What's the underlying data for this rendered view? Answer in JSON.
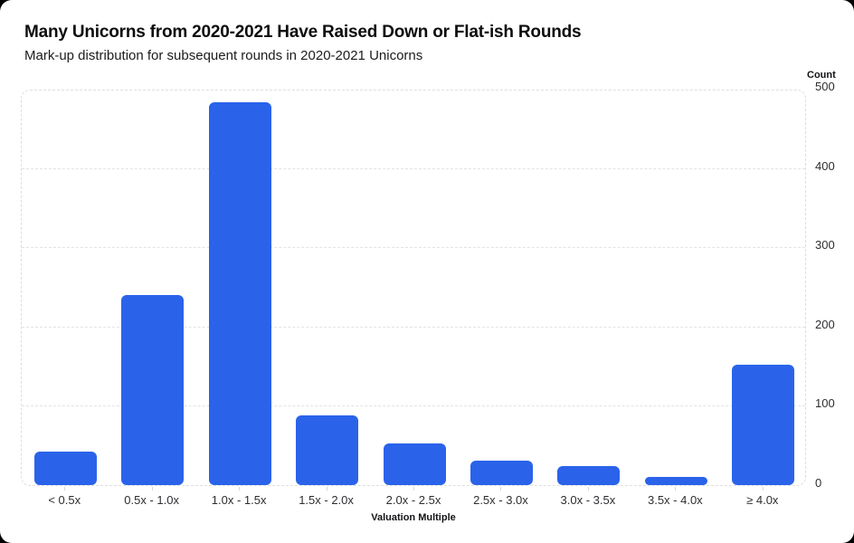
{
  "chart_data": {
    "type": "bar",
    "title": "Many Unicorns from 2020-2021 Have Raised Down or Flat-ish Rounds",
    "subtitle": "Mark-up distribution for subsequent rounds in 2020-2021 Unicorns",
    "xlabel": "Valuation Multiple",
    "ylabel": "Count",
    "categories": [
      "< 0.5x",
      "0.5x - 1.0x",
      "1.0x - 1.5x",
      "1.5x - 2.0x",
      "2.0x - 2.5x",
      "2.5x - 3.0x",
      "3.0x - 3.5x",
      "3.5x - 4.0x",
      "≥ 4.0x"
    ],
    "values": [
      42,
      241,
      485,
      88,
      53,
      31,
      24,
      10,
      152
    ],
    "ylim": [
      0,
      500
    ],
    "yticks": [
      0,
      100,
      200,
      300,
      400,
      500
    ],
    "grid": "horizontal-dashed",
    "legend": "none",
    "bar_color": "#2a63ea"
  },
  "colors": {
    "bar": "#2a63ea",
    "page_background": "#000000",
    "card_background": "#ffffff",
    "gridline": "#e3e3e3",
    "tick_label": "#2d2e31",
    "axis_title": "#121316"
  }
}
